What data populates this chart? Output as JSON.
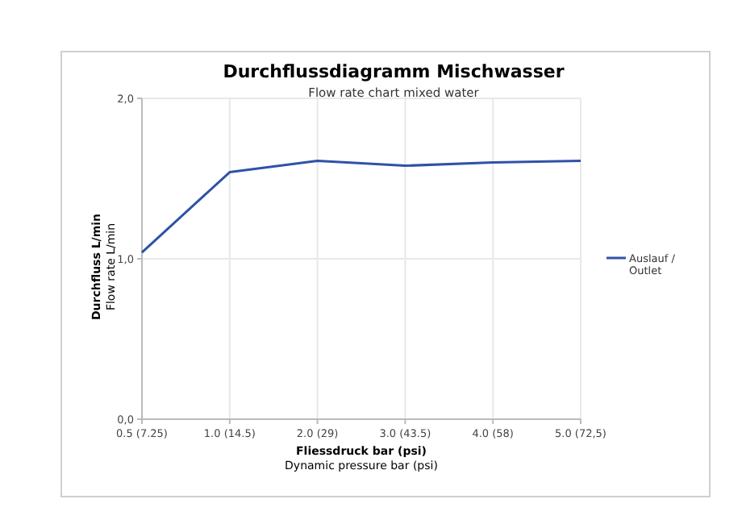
{
  "chart_data": {
    "type": "line",
    "title": "Durchflussdiagramm Mischwasser",
    "subtitle": "Flow rate chart mixed water",
    "xlabel": "Fliessdruck bar (psi)\nDynamic pressure bar (psi)",
    "ylabel": "Durchfluss L/min\nFlow rate L/min",
    "categories": [
      "0.5 (7.25)",
      "1.0 (14.5)",
      "2.0 (29)",
      "3.0 (43.5)",
      "4.0 (58)",
      "5.0 (72,5)"
    ],
    "series": [
      {
        "name": "Auslauf / Outlet",
        "color": "#2f52a8",
        "values": [
          1.04,
          1.54,
          1.61,
          1.58,
          1.6,
          1.61
        ]
      }
    ],
    "ylim": [
      0,
      2
    ],
    "yticks": [
      {
        "value": 0,
        "label": "0,0"
      },
      {
        "value": 1,
        "label": "1,0"
      },
      {
        "value": 2,
        "label": "2,0"
      }
    ],
    "grid": true,
    "legend": "right",
    "marker": "none",
    "line_style": "solid"
  }
}
